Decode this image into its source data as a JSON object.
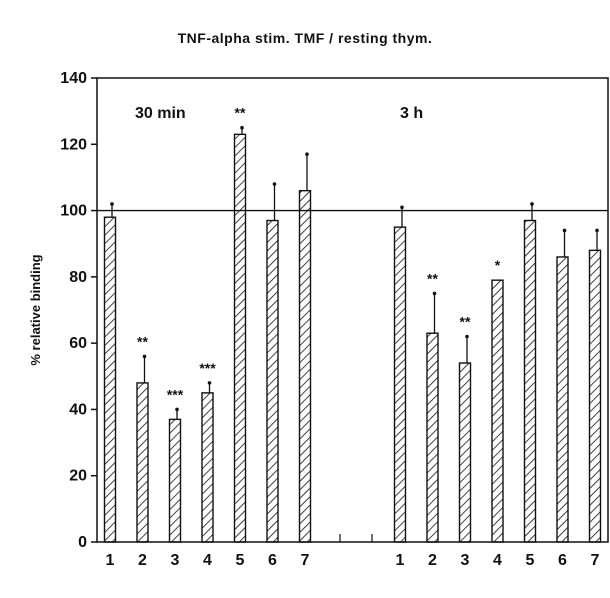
{
  "chart_data": {
    "type": "bar",
    "title": "TNF-alpha stim. TMF / resting thym.",
    "ylabel": "% relative binding",
    "ylim": [
      0,
      140
    ],
    "yticks": [
      "0",
      "20",
      "40",
      "60",
      "80",
      "100",
      "120",
      "140"
    ],
    "reference_line": 100,
    "hatched_bars": true,
    "groups": [
      {
        "label": "30 min",
        "categories": [
          "1",
          "2",
          "3",
          "4",
          "5",
          "6",
          "7"
        ],
        "values": [
          98,
          48,
          37,
          45,
          123,
          97,
          106
        ],
        "errors": [
          4,
          8,
          3,
          3,
          2,
          11,
          11
        ],
        "significance": [
          "",
          "**",
          "***",
          "***",
          "**",
          "",
          ""
        ]
      },
      {
        "label": "3 h",
        "categories": [
          "1",
          "2",
          "3",
          "4",
          "5",
          "6",
          "7"
        ],
        "values": [
          95,
          63,
          54,
          79,
          97,
          86,
          88
        ],
        "errors": [
          6,
          12,
          8,
          0,
          5,
          8,
          6
        ],
        "significance": [
          "",
          "**",
          "**",
          "*",
          "",
          "",
          ""
        ]
      }
    ]
  }
}
